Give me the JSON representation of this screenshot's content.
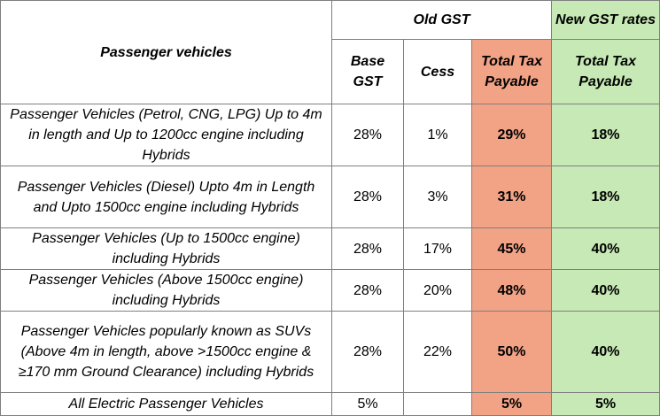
{
  "table": {
    "header": {
      "row_label": "Passenger vehicles",
      "old_group": "Old GST",
      "new_group": "New GST rates",
      "columns": [
        "Base GST",
        "Cess",
        "Total Tax Payable",
        "Total Tax Payable"
      ]
    },
    "rows": [
      [
        "Passenger Vehicles (Petrol, CNG, LPG) Up to 4m in length and Up to 1200cc engine including Hybrids",
        "28%",
        "1%",
        "29%",
        "18%"
      ],
      [
        "Passenger Vehicles (Diesel) Upto 4m in Length and Upto 1500cc engine including Hybrids",
        "28%",
        "3%",
        "31%",
        "18%"
      ],
      [
        "Passenger Vehicles (Up to 1500cc engine) including Hybrids",
        "28%",
        "17%",
        "45%",
        "40%"
      ],
      [
        "Passenger Vehicles (Above 1500cc engine) including Hybrids",
        "28%",
        "20%",
        "48%",
        "40%"
      ],
      [
        "Passenger Vehicles popularly known as SUVs (Above 4m in length, above >1500cc engine & ≥170 mm Ground Clearance) including Hybrids",
        "28%",
        "22%",
        "50%",
        "40%"
      ],
      [
        "All Electric Passenger Vehicles",
        "5%",
        "",
        "5%",
        "5%"
      ]
    ]
  }
}
